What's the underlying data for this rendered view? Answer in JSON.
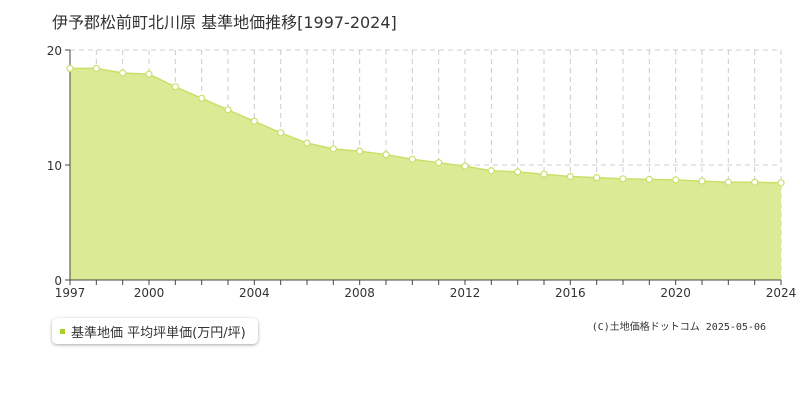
{
  "colors": {
    "fill": "#dbeb95",
    "line": "#c8e06a",
    "marker_fill": "#ffffff",
    "marker_stroke": "#c8e06a",
    "grid": "#cccccc",
    "axis": "#444444",
    "legend_marker": "#a7d12a"
  },
  "legend": {
    "label": "基準地価 平均坪単価(万円/坪)"
  },
  "copyright": "(C)土地価格ドットコム 2025-05-06",
  "chart_data": {
    "type": "area",
    "title": "伊予郡松前町北川原 基準地価推移[1997-2024]",
    "xlabel": "",
    "ylabel": "",
    "xlim": [
      1997,
      2024
    ],
    "ylim": [
      0,
      20
    ],
    "x_ticks": [
      "1997",
      "2000",
      "2004",
      "2008",
      "2012",
      "2016",
      "2020",
      "2024"
    ],
    "x_tick_values": [
      1997,
      2000,
      2004,
      2008,
      2012,
      2016,
      2020,
      2024
    ],
    "y_ticks": [
      "0",
      "10",
      "20"
    ],
    "y_tick_values": [
      0,
      10,
      20
    ],
    "grid": true,
    "legend_position": "bottom-left",
    "series": [
      {
        "name": "基準地価 平均坪単価(万円/坪)",
        "x": [
          1997,
          1998,
          1999,
          2000,
          2001,
          2002,
          2003,
          2004,
          2005,
          2006,
          2007,
          2008,
          2009,
          2010,
          2011,
          2012,
          2013,
          2014,
          2015,
          2016,
          2017,
          2018,
          2019,
          2020,
          2021,
          2022,
          2023,
          2024
        ],
        "y": [
          18.4,
          18.4,
          18.0,
          17.9,
          16.8,
          15.8,
          14.8,
          13.8,
          12.8,
          11.9,
          11.4,
          11.2,
          10.9,
          10.5,
          10.2,
          9.9,
          9.5,
          9.4,
          9.2,
          9.0,
          8.9,
          8.8,
          8.75,
          8.7,
          8.6,
          8.5,
          8.5,
          8.45
        ]
      }
    ]
  }
}
